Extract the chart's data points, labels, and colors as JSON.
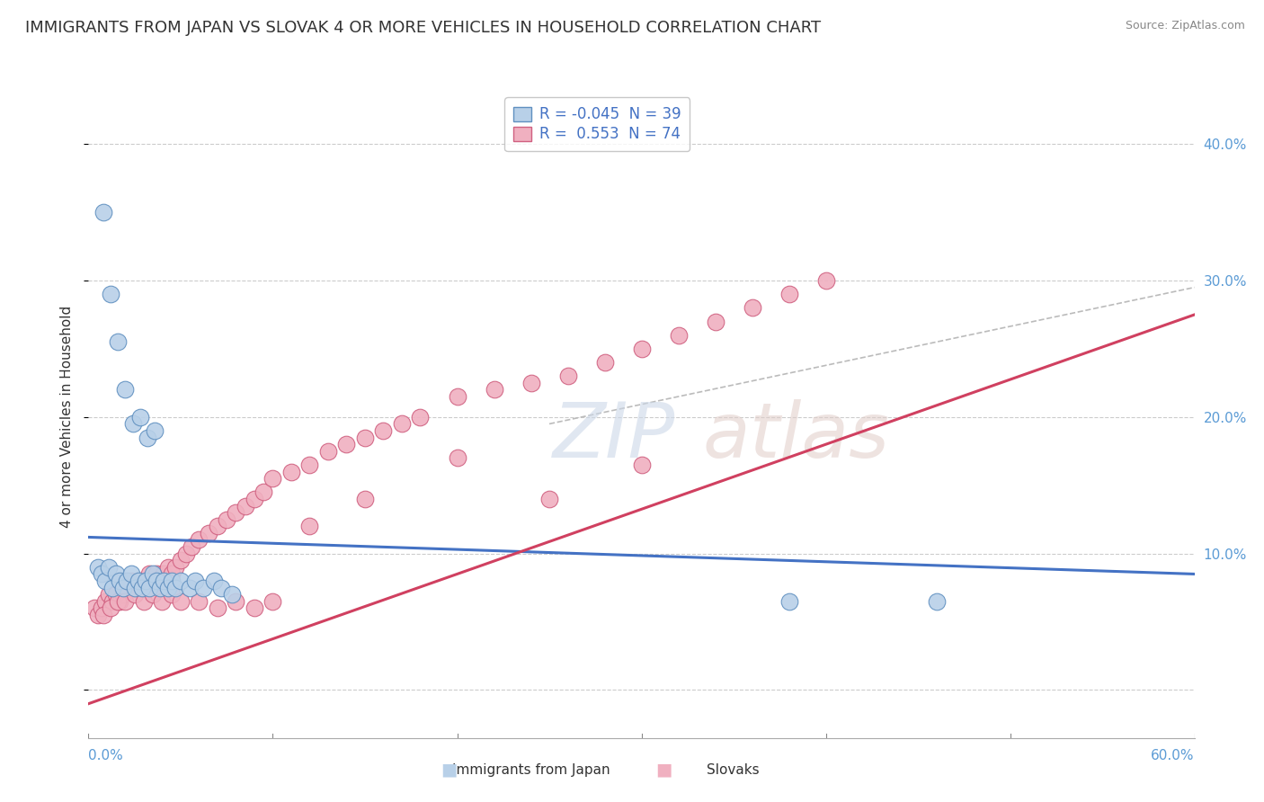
{
  "title": "IMMIGRANTS FROM JAPAN VS SLOVAK 4 OR MORE VEHICLES IN HOUSEHOLD CORRELATION CHART",
  "source": "Source: ZipAtlas.com",
  "ylabel": "4 or more Vehicles in Household",
  "yticks": [
    0.0,
    0.1,
    0.2,
    0.3,
    0.4
  ],
  "ytick_labels": [
    "",
    "10.0%",
    "20.0%",
    "30.0%",
    "40.0%"
  ],
  "xmin": 0.0,
  "xmax": 0.6,
  "ymin": -0.035,
  "ymax": 0.435,
  "legend_japan_r": "-0.045",
  "legend_japan_n": "39",
  "legend_slovak_r": "0.553",
  "legend_slovak_n": "74",
  "japan_color": "#b8d0e8",
  "japan_edge_color": "#6090c0",
  "slovak_color": "#f0b0c0",
  "slovak_edge_color": "#d06080",
  "japan_line_color": "#4472c4",
  "slovak_line_color": "#d04060",
  "japan_line_x0": 0.0,
  "japan_line_y0": 0.112,
  "japan_line_x1": 0.6,
  "japan_line_y1": 0.085,
  "slovak_line_x0": 0.0,
  "slovak_line_y0": -0.01,
  "slovak_line_x1": 0.6,
  "slovak_line_y1": 0.275,
  "dash_line_x0": 0.25,
  "dash_line_y0": 0.195,
  "dash_line_x1": 0.6,
  "dash_line_y1": 0.295,
  "japan_scatter_x": [
    0.005,
    0.007,
    0.009,
    0.011,
    0.013,
    0.015,
    0.017,
    0.019,
    0.021,
    0.023,
    0.025,
    0.027,
    0.029,
    0.031,
    0.033,
    0.035,
    0.037,
    0.039,
    0.041,
    0.043,
    0.045,
    0.047,
    0.05,
    0.055,
    0.058,
    0.062,
    0.068,
    0.072,
    0.078,
    0.38,
    0.46,
    0.008,
    0.012,
    0.016,
    0.02,
    0.024,
    0.028,
    0.032,
    0.036
  ],
  "japan_scatter_y": [
    0.09,
    0.085,
    0.08,
    0.09,
    0.075,
    0.085,
    0.08,
    0.075,
    0.08,
    0.085,
    0.075,
    0.08,
    0.075,
    0.08,
    0.075,
    0.085,
    0.08,
    0.075,
    0.08,
    0.075,
    0.08,
    0.075,
    0.08,
    0.075,
    0.08,
    0.075,
    0.08,
    0.075,
    0.07,
    0.065,
    0.065,
    0.35,
    0.29,
    0.255,
    0.22,
    0.195,
    0.2,
    0.185,
    0.19
  ],
  "slovak_scatter_x": [
    0.003,
    0.005,
    0.007,
    0.009,
    0.011,
    0.013,
    0.015,
    0.017,
    0.019,
    0.021,
    0.023,
    0.025,
    0.027,
    0.029,
    0.031,
    0.033,
    0.035,
    0.037,
    0.039,
    0.041,
    0.043,
    0.045,
    0.047,
    0.05,
    0.053,
    0.056,
    0.06,
    0.065,
    0.07,
    0.075,
    0.08,
    0.085,
    0.09,
    0.095,
    0.1,
    0.11,
    0.12,
    0.13,
    0.14,
    0.15,
    0.16,
    0.17,
    0.18,
    0.2,
    0.22,
    0.24,
    0.26,
    0.28,
    0.3,
    0.32,
    0.34,
    0.36,
    0.38,
    0.4,
    0.008,
    0.012,
    0.016,
    0.02,
    0.025,
    0.03,
    0.035,
    0.04,
    0.045,
    0.05,
    0.06,
    0.07,
    0.08,
    0.09,
    0.1,
    0.12,
    0.15,
    0.2,
    0.25,
    0.3
  ],
  "slovak_scatter_y": [
    0.06,
    0.055,
    0.06,
    0.065,
    0.07,
    0.065,
    0.07,
    0.065,
    0.07,
    0.075,
    0.08,
    0.075,
    0.08,
    0.075,
    0.08,
    0.085,
    0.08,
    0.085,
    0.08,
    0.085,
    0.09,
    0.085,
    0.09,
    0.095,
    0.1,
    0.105,
    0.11,
    0.115,
    0.12,
    0.125,
    0.13,
    0.135,
    0.14,
    0.145,
    0.155,
    0.16,
    0.165,
    0.175,
    0.18,
    0.185,
    0.19,
    0.195,
    0.2,
    0.215,
    0.22,
    0.225,
    0.23,
    0.24,
    0.25,
    0.26,
    0.27,
    0.28,
    0.29,
    0.3,
    0.055,
    0.06,
    0.065,
    0.065,
    0.07,
    0.065,
    0.07,
    0.065,
    0.07,
    0.065,
    0.065,
    0.06,
    0.065,
    0.06,
    0.065,
    0.12,
    0.14,
    0.17,
    0.14,
    0.165
  ],
  "grid_color": "#cccccc",
  "background_color": "#ffffff",
  "title_fontsize": 13,
  "axis_label_fontsize": 11,
  "tick_fontsize": 11,
  "legend_fontsize": 12,
  "tick_color": "#5b9bd5"
}
